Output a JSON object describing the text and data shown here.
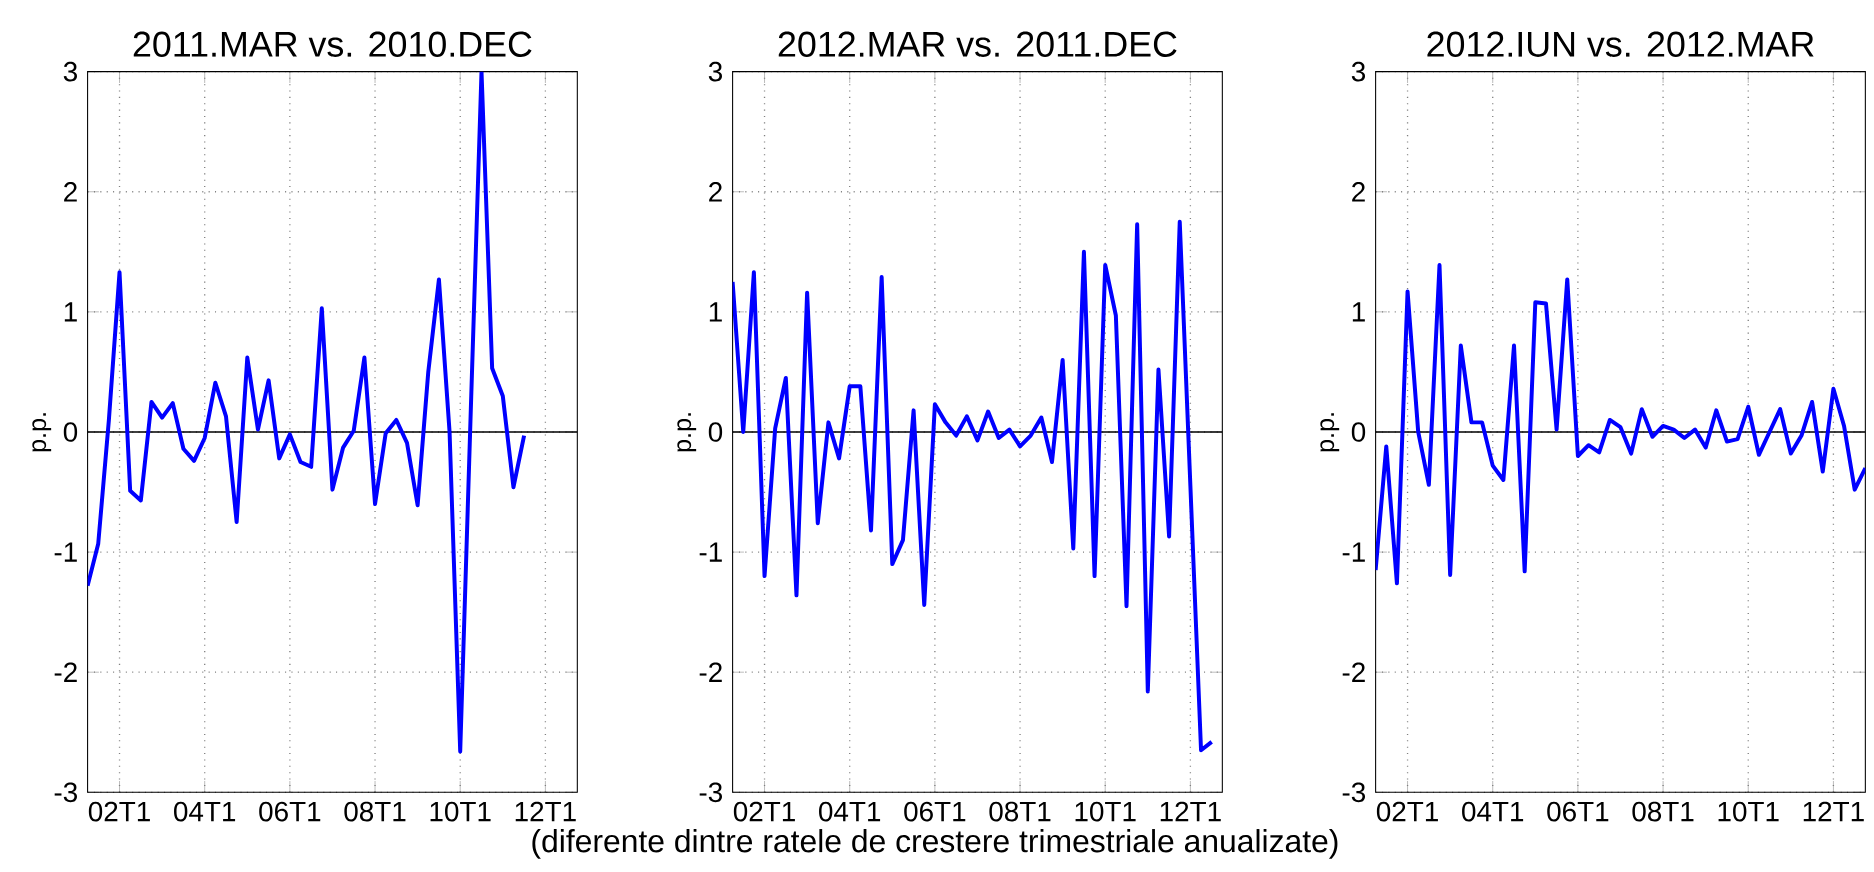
{
  "chart_data": [
    {
      "type": "line",
      "title": "2011.MAR vs. 2010.DEC",
      "ylabel": "p.p.",
      "grid": true,
      "x": [
        "2001-04",
        "2001-07",
        "2001-10",
        "2002-01",
        "2002-04",
        "2002-07",
        "2002-10",
        "2003-01",
        "2003-04",
        "2003-07",
        "2003-10",
        "2004-01",
        "2004-04",
        "2004-07",
        "2004-10",
        "2005-01",
        "2005-04",
        "2005-07",
        "2005-10",
        "2006-01",
        "2006-04",
        "2006-07",
        "2006-10",
        "2007-01",
        "2007-04",
        "2007-07",
        "2007-10",
        "2008-01",
        "2008-04",
        "2008-07",
        "2008-10",
        "2009-01",
        "2009-04",
        "2009-07",
        "2009-10",
        "2010-01",
        "2010-04",
        "2010-07",
        "2010-10",
        "2011-01",
        "2011-04",
        "2011-07"
      ],
      "series": [
        {
          "color": "#0000ff",
          "values": [
            -1.28,
            -0.93,
            0.1,
            1.33,
            -0.49,
            -0.57,
            0.25,
            0.12,
            0.24,
            -0.14,
            -0.24,
            -0.05,
            0.41,
            0.13,
            -0.75,
            0.62,
            0.02,
            0.43,
            -0.22,
            -0.02,
            -0.25,
            -0.29,
            1.03,
            -0.48,
            -0.13,
            0.01,
            0.62,
            -0.6,
            -0.01,
            0.1,
            -0.09,
            -0.61,
            0.5,
            1.27,
            0.0,
            -2.66,
            0.2,
            3.0,
            0.53,
            0.3,
            -0.46,
            -0.03
          ]
        }
      ],
      "xlim": [
        "2001-04",
        "2012-10"
      ],
      "ylim": [
        -3,
        3
      ],
      "xticks": [
        {
          "value": "2002-01",
          "label": "02T1"
        },
        {
          "value": "2004-01",
          "label": "04T1"
        },
        {
          "value": "2006-01",
          "label": "06T1"
        },
        {
          "value": "2008-01",
          "label": "08T1"
        },
        {
          "value": "2010-01",
          "label": "10T1"
        },
        {
          "value": "2012-01",
          "label": "12T1"
        }
      ],
      "yticks": [
        -3,
        -2,
        -1,
        0,
        1,
        2,
        3
      ],
      "ref_lines": [
        {
          "axis": "y",
          "value": 0,
          "color": "#000000"
        }
      ]
    },
    {
      "type": "line",
      "title": "2012.MAR vs. 2011.DEC",
      "ylabel": "p.p.",
      "xlabel": "(diferente dintre ratele de crestere trimestriale anualizate)",
      "grid": true,
      "x": [
        "2001-04",
        "2001-07",
        "2001-10",
        "2002-01",
        "2002-04",
        "2002-07",
        "2002-10",
        "2003-01",
        "2003-04",
        "2003-07",
        "2003-10",
        "2004-01",
        "2004-04",
        "2004-07",
        "2004-10",
        "2005-01",
        "2005-04",
        "2005-07",
        "2005-10",
        "2006-01",
        "2006-04",
        "2006-07",
        "2006-10",
        "2007-01",
        "2007-04",
        "2007-07",
        "2007-10",
        "2008-01",
        "2008-04",
        "2008-07",
        "2008-10",
        "2009-01",
        "2009-04",
        "2009-07",
        "2009-10",
        "2010-01",
        "2010-04",
        "2010-07",
        "2010-10",
        "2011-01",
        "2011-04",
        "2011-07",
        "2011-10",
        "2012-01",
        "2012-04",
        "2012-07"
      ],
      "series": [
        {
          "color": "#0000ff",
          "values": [
            1.25,
            0.0,
            1.33,
            -1.2,
            0.03,
            0.45,
            -1.36,
            1.16,
            -0.76,
            0.08,
            -0.22,
            0.38,
            0.38,
            -0.82,
            1.29,
            -1.1,
            -0.9,
            0.18,
            -1.44,
            0.23,
            0.08,
            -0.03,
            0.13,
            -0.07,
            0.17,
            -0.05,
            0.02,
            -0.12,
            -0.03,
            0.12,
            -0.25,
            0.6,
            -0.97,
            1.5,
            -1.2,
            1.39,
            0.97,
            -1.45,
            1.73,
            -2.16,
            0.52,
            -0.87,
            1.75,
            -0.45,
            -2.65,
            -2.58
          ]
        }
      ],
      "xlim": [
        "2001-04",
        "2012-10"
      ],
      "ylim": [
        -3,
        3
      ],
      "xticks": [
        {
          "value": "2002-01",
          "label": "02T1"
        },
        {
          "value": "2004-01",
          "label": "04T1"
        },
        {
          "value": "2006-01",
          "label": "06T1"
        },
        {
          "value": "2008-01",
          "label": "08T1"
        },
        {
          "value": "2010-01",
          "label": "10T1"
        },
        {
          "value": "2012-01",
          "label": "12T1"
        }
      ],
      "yticks": [
        -3,
        -2,
        -1,
        0,
        1,
        2,
        3
      ],
      "ref_lines": [
        {
          "axis": "y",
          "value": 0,
          "color": "#000000"
        }
      ]
    },
    {
      "type": "line",
      "title": "2012.IUN vs. 2012.MAR",
      "ylabel": "p.p.",
      "grid": true,
      "x": [
        "2001-04",
        "2001-07",
        "2001-10",
        "2002-01",
        "2002-04",
        "2002-07",
        "2002-10",
        "2003-01",
        "2003-04",
        "2003-07",
        "2003-10",
        "2004-01",
        "2004-04",
        "2004-07",
        "2004-10",
        "2005-01",
        "2005-04",
        "2005-07",
        "2005-10",
        "2006-01",
        "2006-04",
        "2006-07",
        "2006-10",
        "2007-01",
        "2007-04",
        "2007-07",
        "2007-10",
        "2008-01",
        "2008-04",
        "2008-07",
        "2008-10",
        "2009-01",
        "2009-04",
        "2009-07",
        "2009-10",
        "2010-01",
        "2010-04",
        "2010-07",
        "2010-10",
        "2011-01",
        "2011-04",
        "2011-07",
        "2011-10",
        "2012-01",
        "2012-04",
        "2012-07",
        "2012-10"
      ],
      "series": [
        {
          "color": "#0000ff",
          "values": [
            -1.15,
            -0.12,
            -1.26,
            1.17,
            0.0,
            -0.44,
            1.39,
            -1.19,
            0.72,
            0.08,
            0.08,
            -0.28,
            -0.4,
            0.72,
            -1.16,
            1.08,
            1.07,
            0.02,
            1.27,
            -0.2,
            -0.11,
            -0.17,
            0.1,
            0.04,
            -0.18,
            0.19,
            -0.04,
            0.05,
            0.02,
            -0.05,
            0.02,
            -0.13,
            0.18,
            -0.08,
            -0.06,
            0.21,
            -0.19,
            0.0,
            0.19,
            -0.18,
            -0.03,
            0.25,
            -0.33,
            0.36,
            0.05,
            -0.48,
            -0.3
          ]
        }
      ],
      "xlim": [
        "2001-04",
        "2012-10"
      ],
      "ylim": [
        -3,
        3
      ],
      "xticks": [
        {
          "value": "2002-01",
          "label": "02T1"
        },
        {
          "value": "2004-01",
          "label": "04T1"
        },
        {
          "value": "2006-01",
          "label": "06T1"
        },
        {
          "value": "2008-01",
          "label": "08T1"
        },
        {
          "value": "2010-01",
          "label": "10T1"
        },
        {
          "value": "2012-01",
          "label": "12T1"
        }
      ],
      "yticks": [
        -3,
        -2,
        -1,
        0,
        1,
        2,
        3
      ],
      "ref_lines": [
        {
          "axis": "y",
          "value": 0,
          "color": "#000000"
        }
      ]
    }
  ]
}
